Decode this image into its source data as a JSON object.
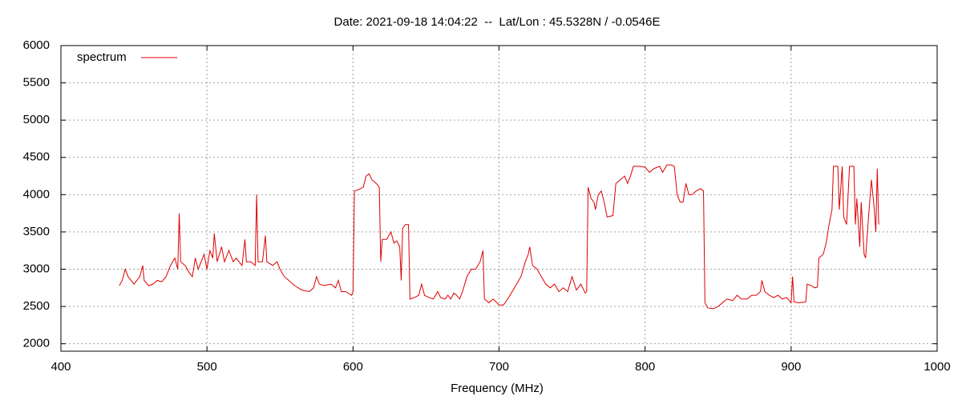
{
  "chart_data": {
    "type": "line",
    "title": "Date: 2021-09-18 14:04:22  --  Lat/Lon : 45.5328N / -0.0546E",
    "x_label": "Frequency (MHz)",
    "xlim": [
      400,
      1000
    ],
    "xticks": [
      400,
      500,
      600,
      700,
      800,
      900,
      1000
    ],
    "ylim": [
      1900,
      6000
    ],
    "yticks": [
      2000,
      2500,
      3000,
      3500,
      4000,
      4500,
      5000,
      5500,
      6000
    ],
    "grid": true,
    "legend": "top-left",
    "x": [
      440,
      442,
      444,
      446,
      448,
      450,
      452,
      454,
      456,
      457,
      460,
      463,
      466,
      469,
      472,
      475,
      478,
      480,
      481,
      482,
      485,
      488,
      490,
      492,
      494,
      496,
      498,
      500,
      502,
      504,
      505,
      507,
      510,
      512,
      515,
      518,
      520,
      524,
      526,
      527,
      530,
      533,
      534,
      535,
      538,
      540,
      541,
      545,
      548,
      550,
      553,
      556,
      560,
      565,
      570,
      573,
      575,
      577,
      580,
      585,
      588,
      590,
      592,
      595,
      599,
      600,
      601,
      604,
      607,
      609,
      611,
      613,
      616,
      618,
      619,
      620,
      623,
      626,
      628,
      630,
      632,
      633,
      634,
      636,
      638,
      639,
      642,
      645,
      647,
      649,
      652,
      655,
      658,
      660,
      663,
      665,
      667,
      669,
      671,
      673,
      675,
      678,
      681,
      684,
      687,
      689,
      690,
      693,
      696,
      700,
      703,
      706,
      709,
      712,
      715,
      718,
      720,
      721,
      723,
      726,
      729,
      732,
      735,
      738,
      741,
      744,
      747,
      750,
      753,
      756,
      759,
      760,
      761,
      763,
      765,
      766,
      768,
      770,
      772,
      774,
      778,
      780,
      783,
      786,
      788,
      790,
      792,
      796,
      800,
      803,
      806,
      810,
      812,
      815,
      818,
      820,
      822,
      824,
      826,
      828,
      830,
      832,
      835,
      838,
      840,
      841,
      843,
      847,
      850,
      853,
      856,
      860,
      863,
      866,
      870,
      873,
      876,
      879,
      880,
      882,
      885,
      888,
      891,
      894,
      897,
      900,
      901,
      902,
      905,
      910,
      911,
      914,
      916,
      918,
      919,
      922,
      924,
      926,
      928,
      929,
      932,
      933,
      935,
      936,
      938,
      940,
      943,
      944,
      945,
      947,
      948,
      950,
      951,
      953,
      955,
      957,
      958,
      959,
      960
    ],
    "series": [
      {
        "name": "spectrum",
        "color": "#dd0000",
        "values": [
          2780,
          2850,
          3000,
          2900,
          2850,
          2800,
          2850,
          2900,
          3050,
          2850,
          2780,
          2800,
          2850,
          2830,
          2900,
          3050,
          3150,
          3000,
          3750,
          3100,
          3050,
          2950,
          2900,
          3150,
          3000,
          3100,
          3200,
          3000,
          3250,
          3150,
          3480,
          3100,
          3300,
          3100,
          3250,
          3100,
          3150,
          3050,
          3400,
          3100,
          3100,
          3050,
          4000,
          3100,
          3100,
          3450,
          3100,
          3050,
          3100,
          3000,
          2900,
          2850,
          2780,
          2720,
          2700,
          2750,
          2900,
          2800,
          2780,
          2800,
          2750,
          2850,
          2700,
          2700,
          2650,
          2700,
          4050,
          4070,
          4100,
          4250,
          4280,
          4200,
          4150,
          4100,
          3100,
          3400,
          3400,
          3500,
          3350,
          3380,
          3300,
          2850,
          3550,
          3600,
          3600,
          2600,
          2620,
          2650,
          2800,
          2650,
          2620,
          2600,
          2700,
          2620,
          2600,
          2650,
          2600,
          2680,
          2650,
          2600,
          2700,
          2900,
          3000,
          3000,
          3100,
          3250,
          2600,
          2550,
          2600,
          2520,
          2520,
          2600,
          2700,
          2800,
          2900,
          3100,
          3200,
          3300,
          3050,
          3000,
          2900,
          2800,
          2750,
          2800,
          2700,
          2750,
          2700,
          2900,
          2720,
          2800,
          2680,
          2700,
          4100,
          3950,
          3900,
          3800,
          4000,
          4050,
          3900,
          3700,
          3720,
          4150,
          4200,
          4250,
          4150,
          4250,
          4380,
          4380,
          4370,
          4300,
          4350,
          4380,
          4300,
          4400,
          4400,
          4380,
          4000,
          3900,
          3900,
          4150,
          4000,
          4000,
          4050,
          4080,
          4050,
          2550,
          2480,
          2470,
          2500,
          2550,
          2600,
          2580,
          2650,
          2600,
          2600,
          2650,
          2650,
          2700,
          2850,
          2700,
          2650,
          2620,
          2650,
          2600,
          2620,
          2550,
          2900,
          2560,
          2550,
          2560,
          2800,
          2780,
          2750,
          2760,
          3150,
          3200,
          3350,
          3600,
          3800,
          4380,
          4380,
          3800,
          4380,
          3700,
          3600,
          4380,
          4380,
          3600,
          3950,
          3300,
          3900,
          3200,
          3150,
          3700,
          4200,
          3800,
          3500,
          4350,
          3600
        ]
      }
    ]
  }
}
